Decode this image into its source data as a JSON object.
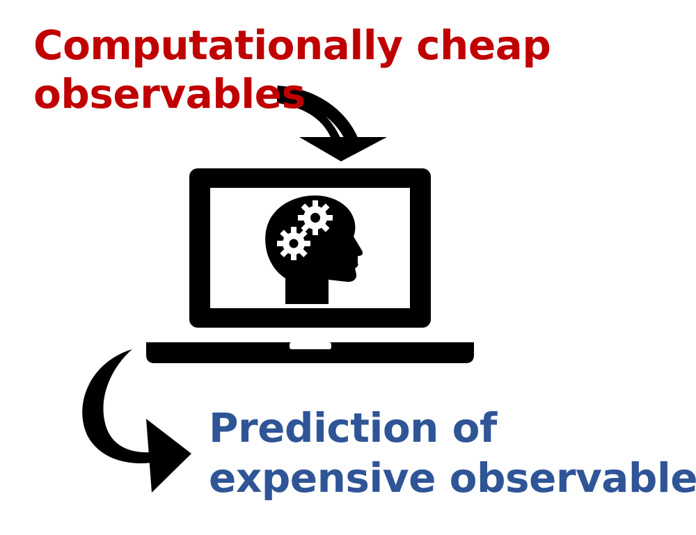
{
  "diagram": {
    "input_label": {
      "lines": [
        "Computationally cheap",
        "observables"
      ],
      "color": "#c00000"
    },
    "output_label": {
      "lines": [
        "Prediction of",
        "expensive observables"
      ],
      "color": "#2f5597"
    },
    "icons": {
      "input_arrow": "curved-arrow-down",
      "computer": "laptop-icon",
      "brain": "head-with-gears-icon",
      "output_arrow": "curved-arrow-right"
    }
  }
}
